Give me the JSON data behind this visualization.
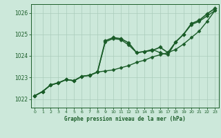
{
  "background_color": "#cce8da",
  "plot_bg_color": "#cce8da",
  "grid_color": "#aaccbb",
  "line_color": "#1a5c28",
  "marker_color": "#1a5c28",
  "xlabel": "Graphe pression niveau de la mer (hPa)",
  "ylim": [
    1021.6,
    1026.4
  ],
  "xlim": [
    -0.5,
    23.5
  ],
  "yticks": [
    1022,
    1023,
    1024,
    1025,
    1026
  ],
  "xticks": [
    0,
    1,
    2,
    3,
    4,
    5,
    6,
    7,
    8,
    9,
    10,
    11,
    12,
    13,
    14,
    15,
    16,
    17,
    18,
    19,
    20,
    21,
    22,
    23
  ],
  "series": [
    [
      1022.15,
      1022.35,
      1022.65,
      1022.75,
      1022.9,
      1022.85,
      1023.05,
      1023.1,
      1023.25,
      1023.3,
      1023.35,
      1023.45,
      1023.55,
      1023.7,
      1023.8,
      1023.95,
      1024.05,
      1024.15,
      1024.3,
      1024.55,
      1024.85,
      1025.15,
      1025.6,
      1026.1
    ],
    [
      1022.15,
      1022.35,
      1022.65,
      1022.75,
      1022.9,
      1022.85,
      1023.05,
      1023.1,
      1023.25,
      1024.65,
      1024.8,
      1024.75,
      1024.5,
      1024.15,
      1024.2,
      1024.3,
      1024.15,
      1024.05,
      1024.65,
      1025.0,
      1025.45,
      1025.6,
      1025.85,
      1026.1
    ],
    [
      1022.15,
      1022.35,
      1022.65,
      1022.75,
      1022.9,
      1022.85,
      1023.05,
      1023.1,
      1023.25,
      1024.7,
      1024.85,
      1024.8,
      1024.6,
      1024.15,
      1024.2,
      1024.25,
      1024.4,
      1024.15,
      1024.65,
      1025.0,
      1025.5,
      1025.65,
      1025.95,
      1026.2
    ]
  ]
}
